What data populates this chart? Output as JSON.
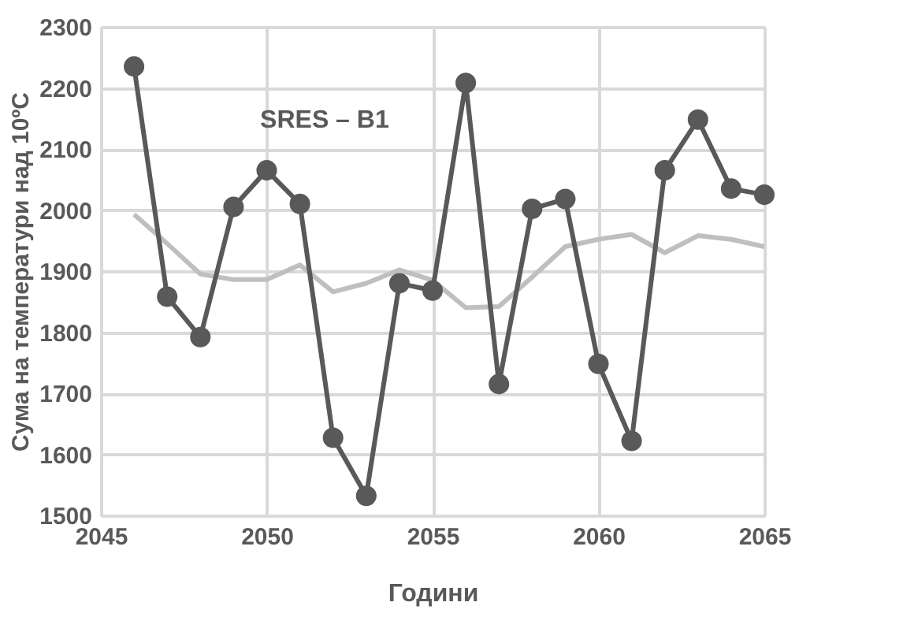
{
  "chart_data": {
    "type": "line",
    "xlabel": "Години",
    "ylabel": "Сума на температури над 10ºC",
    "annotations": [
      "SRES – B1"
    ],
    "x": [
      2046,
      2047,
      2048,
      2049,
      2050,
      2051,
      2052,
      2053,
      2054,
      2055,
      2056,
      2057,
      2058,
      2059,
      2060,
      2061,
      2062,
      2063,
      2064,
      2065
    ],
    "series": [
      {
        "color": "#bfbfbf",
        "marker": "none",
        "values": [
          1993,
          1945,
          1895,
          1886,
          1886,
          1910,
          1866,
          1880,
          1902,
          1885,
          1840,
          1842,
          1890,
          1940,
          1952,
          1960,
          1930,
          1958,
          1952,
          1940
        ]
      },
      {
        "color": "#595959",
        "marker": "circle",
        "values": [
          2235,
          1858,
          1792,
          2005,
          2065,
          2010,
          1627,
          1532,
          1880,
          1868,
          2208,
          1715,
          2002,
          2018,
          1748,
          1622,
          2065,
          2148,
          2035,
          2025
        ]
      }
    ],
    "xlim": [
      2045,
      2065
    ],
    "xticks": [
      2045,
      2050,
      2055,
      2060,
      2065
    ],
    "ylim": [
      1500,
      2300
    ],
    "yticks": [
      1500,
      1600,
      1700,
      1800,
      1900,
      2000,
      2100,
      2200,
      2300
    ],
    "grid": true
  }
}
